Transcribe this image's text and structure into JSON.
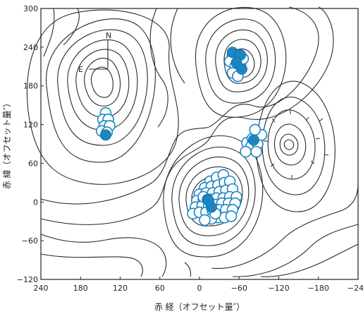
{
  "chart_data": {
    "type": "contour",
    "xlabel": "赤 経（オフセット量″）",
    "ylabel": "赤 緯（オフセット量″）",
    "xlim": [
      240,
      -240
    ],
    "ylim": [
      -120,
      300
    ],
    "x_ticks": [
      "240",
      "180",
      "120",
      "60",
      "0",
      "−60",
      "−120",
      "−180",
      "−240"
    ],
    "x_tick_values": [
      240,
      180,
      120,
      60,
      0,
      -60,
      -120,
      -180,
      -240
    ],
    "y_ticks": [
      "−120",
      "−60",
      "0",
      "60",
      "120",
      "180",
      "240",
      "300"
    ],
    "y_tick_values": [
      -120,
      -60,
      0,
      60,
      120,
      180,
      240,
      300
    ],
    "compass": {
      "north": "N",
      "east": "E"
    },
    "series": [
      {
        "marker": "open-circle",
        "points": [
          [
            142,
            138
          ],
          [
            146,
            128
          ],
          [
            138,
            128
          ],
          [
            144,
            118
          ],
          [
            136,
            118
          ],
          [
            148,
            110
          ],
          [
            140,
            108
          ],
          [
            -50,
            228
          ],
          [
            -58,
            220
          ],
          [
            -46,
            218
          ],
          [
            -54,
            210
          ],
          [
            -62,
            212
          ],
          [
            -50,
            200
          ],
          [
            -58,
            195
          ],
          [
            -66,
            222
          ],
          [
            -72,
            92
          ],
          [
            -80,
            98
          ],
          [
            -78,
            86
          ],
          [
            -88,
            90
          ],
          [
            -86,
            78
          ],
          [
            -94,
            104
          ],
          [
            -84,
            112
          ],
          [
            -70,
            78
          ],
          [
            -16,
            32
          ],
          [
            -26,
            38
          ],
          [
            -36,
            42
          ],
          [
            -8,
            22
          ],
          [
            -18,
            24
          ],
          [
            -28,
            26
          ],
          [
            -38,
            30
          ],
          [
            -46,
            32
          ],
          [
            0,
            12
          ],
          [
            -10,
            14
          ],
          [
            -20,
            14
          ],
          [
            -30,
            16
          ],
          [
            -40,
            18
          ],
          [
            -50,
            20
          ],
          [
            4,
            2
          ],
          [
            -6,
            4
          ],
          [
            -16,
            4
          ],
          [
            -26,
            6
          ],
          [
            -36,
            6
          ],
          [
            -46,
            8
          ],
          [
            -56,
            8
          ],
          [
            6,
            -8
          ],
          [
            -4,
            -6
          ],
          [
            -14,
            -6
          ],
          [
            -24,
            -4
          ],
          [
            -34,
            -2
          ],
          [
            -44,
            -2
          ],
          [
            -54,
            -2
          ],
          [
            10,
            -18
          ],
          [
            0,
            -16
          ],
          [
            -10,
            -16
          ],
          [
            -20,
            -14
          ],
          [
            -30,
            -12
          ],
          [
            -40,
            -12
          ],
          [
            -50,
            -12
          ],
          [
            -28,
            -24
          ],
          [
            -38,
            -24
          ],
          [
            -48,
            -22
          ],
          [
            -18,
            -26
          ],
          [
            -8,
            -28
          ],
          [
            -6,
            8
          ],
          [
            -24,
            -18
          ]
        ]
      },
      {
        "marker": "filled-circle",
        "points": [
          [
            142,
            104
          ],
          [
            -50,
            232
          ],
          [
            -62,
            228
          ],
          [
            -56,
            216
          ],
          [
            -64,
            206
          ],
          [
            -82,
            96
          ],
          [
            -12,
            4
          ],
          [
            -18,
            -8
          ],
          [
            -14,
            2
          ]
        ]
      }
    ],
    "contour_centers": [
      [
        -133,
        90
      ]
    ]
  }
}
